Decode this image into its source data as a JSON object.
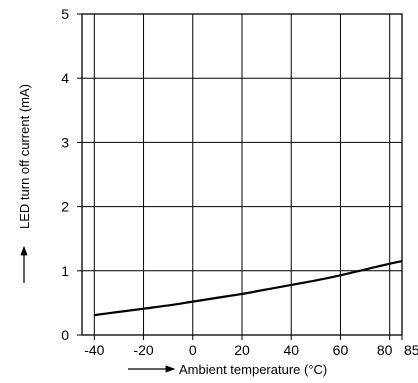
{
  "chart_data": {
    "type": "line",
    "title": "",
    "xlabel": "Ambient temperature (°C)",
    "ylabel": "LED turn off current (mA)",
    "xlim": [
      -45,
      85
    ],
    "ylim": [
      0,
      5
    ],
    "x_ticks": [
      -40,
      -20,
      0,
      20,
      40,
      60,
      80,
      85
    ],
    "x_tick_labels": [
      "-40",
      "-20",
      "0",
      "20",
      "40",
      "60",
      "80",
      "85"
    ],
    "y_ticks": [
      0,
      1,
      2,
      3,
      4,
      5
    ],
    "y_tick_labels": [
      "0",
      "1",
      "2",
      "3",
      "4",
      "5"
    ],
    "grid": true,
    "series": [
      {
        "x": [
          -40,
          -30,
          -20,
          -10,
          0,
          10,
          20,
          30,
          40,
          50,
          60,
          70,
          80,
          85
        ],
        "y": [
          0.31,
          0.36,
          0.41,
          0.46,
          0.52,
          0.58,
          0.64,
          0.71,
          0.78,
          0.85,
          0.93,
          1.02,
          1.11,
          1.15
        ]
      }
    ]
  }
}
